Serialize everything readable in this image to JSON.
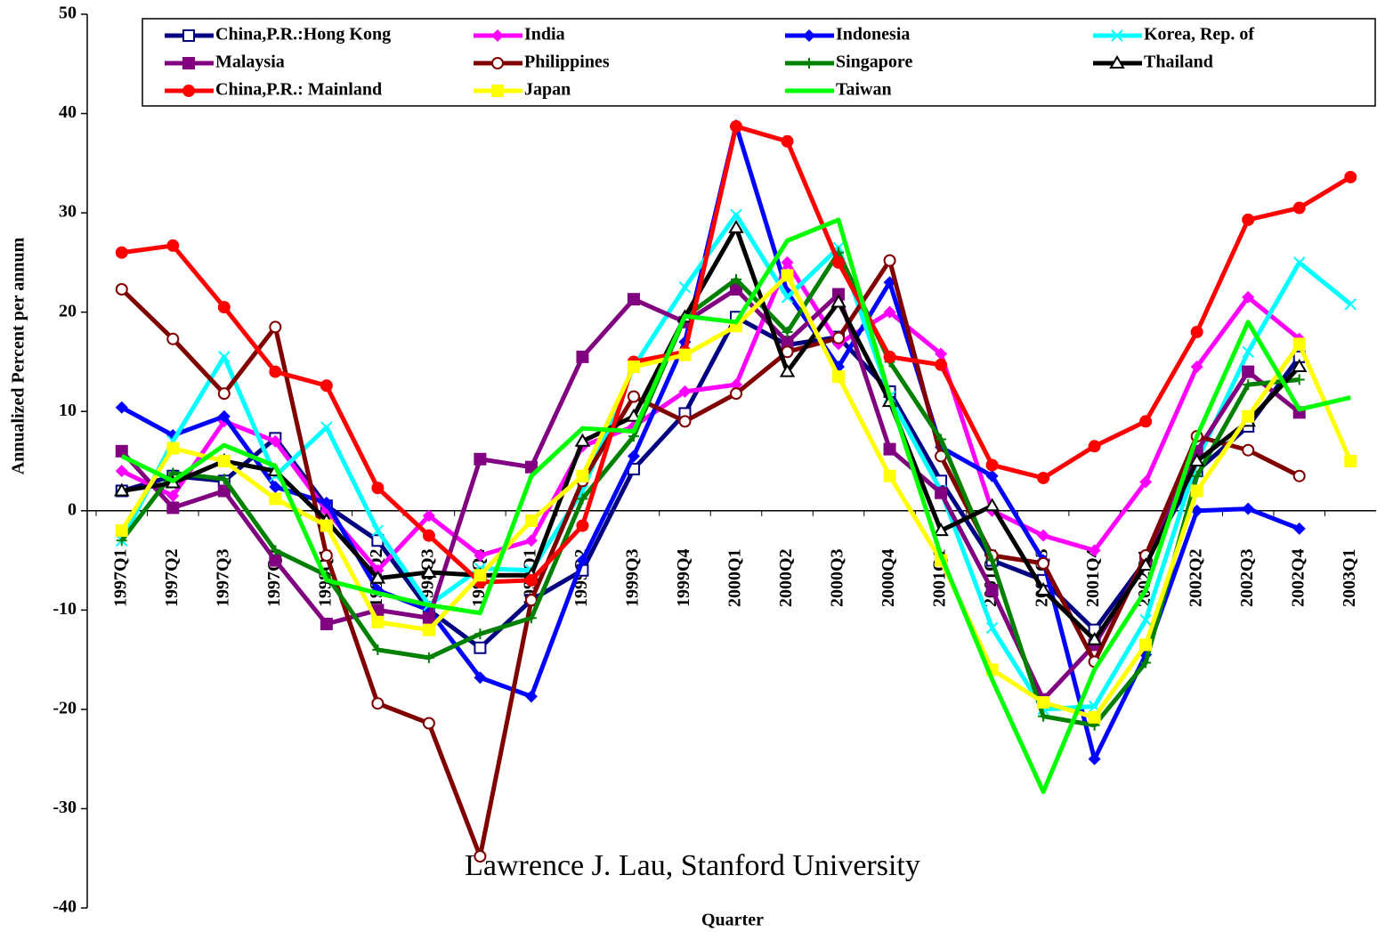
{
  "chart_data": {
    "type": "line",
    "y_label": "Annualized Percent per annum",
    "x_label": "Quarter",
    "annotation": "Lawrence J. Lau, Stanford University",
    "categories": [
      "1997Q1",
      "1997Q2",
      "1997Q3",
      "1997Q4",
      "1998Q1",
      "1998Q2",
      "1998Q3",
      "1998Q4",
      "1999Q1",
      "1999Q2",
      "1999Q3",
      "1999Q4",
      "2000Q1",
      "2000Q2",
      "2000Q3",
      "2000Q4",
      "2001Q1",
      "2001Q2",
      "2001Q3",
      "2001Q4",
      "2002Q1",
      "2002Q2",
      "2002Q3",
      "2002Q4",
      "2003Q1"
    ],
    "ylim": [
      -40,
      50
    ],
    "yticks": [
      -40,
      -30,
      -20,
      -10,
      0,
      10,
      20,
      30,
      40,
      50
    ],
    "grid": false,
    "legend": "top",
    "series": [
      {
        "name": "China,P.R.:Hong Kong",
        "color": "#000080",
        "marker": "square-open",
        "values": [
          2,
          3.5,
          3,
          7.3,
          0.5,
          -3,
          -10,
          -13.8,
          -9,
          -6,
          4.2,
          9.8,
          19.5,
          16.7,
          17.5,
          12,
          3,
          -5,
          -7,
          -12,
          -5,
          4,
          8.5,
          15.5,
          null
        ]
      },
      {
        "name": "India",
        "color": "#ff00ff",
        "marker": "diamond",
        "values": [
          4,
          1.5,
          9,
          7,
          0,
          -6,
          -0.5,
          -4.5,
          -3,
          6.5,
          8.5,
          12,
          12.7,
          25,
          16.8,
          20,
          15.8,
          0,
          -2.5,
          -4,
          2.9,
          14.5,
          21.5,
          17.3,
          null
        ]
      },
      {
        "name": "Indonesia",
        "color": "#0000ff",
        "marker": "diamond",
        "values": [
          10.4,
          7.6,
          9.5,
          2.4,
          0.8,
          -8,
          -10,
          -16.8,
          -18.7,
          -5,
          5.5,
          17,
          38.8,
          22,
          14.5,
          23,
          6.4,
          3.5,
          -5,
          -25,
          -14.5,
          0,
          0.2,
          -1.8,
          null
        ]
      },
      {
        "name": "Korea, Rep. of",
        "color": "#00ffff",
        "marker": "x",
        "values": [
          -3,
          7,
          15.5,
          3.5,
          8.4,
          -2,
          -9.5,
          -5.8,
          -6,
          2,
          14.5,
          22.5,
          29.8,
          21.5,
          26.5,
          11.5,
          2,
          -11.8,
          -20,
          -19.7,
          -11,
          5,
          16,
          25,
          20.8
        ]
      },
      {
        "name": "Malaysia",
        "color": "#800080",
        "marker": "square",
        "values": [
          6,
          0.3,
          2,
          -5,
          -11.4,
          -10,
          -10.8,
          5.2,
          4.4,
          15.5,
          21.3,
          19,
          22.3,
          17,
          21.8,
          6.2,
          1.8,
          -8,
          -19,
          -13.5,
          -5,
          6,
          14,
          9.9,
          null
        ]
      },
      {
        "name": "Philippines",
        "color": "#800000",
        "marker": "circle-open",
        "values": [
          22.3,
          17.3,
          11.8,
          18.5,
          -4.5,
          -19.4,
          -21.4,
          -34.8,
          -9,
          3,
          11.5,
          9,
          11.8,
          16,
          17.4,
          25.2,
          5.5,
          -4.5,
          -5.3,
          -15.2,
          -4.5,
          7.5,
          6.1,
          3.5,
          null
        ]
      },
      {
        "name": "Singapore",
        "color": "#008000",
        "marker": "plus",
        "values": [
          -3,
          3.8,
          3.2,
          -4,
          -6.5,
          -14,
          -14.8,
          -12.4,
          -10.8,
          1.2,
          7.5,
          19.5,
          23.3,
          18,
          26,
          15,
          7.2,
          -5,
          -20.7,
          -21.6,
          -15.3,
          3.5,
          12.7,
          13.2,
          null
        ]
      },
      {
        "name": "Thailand",
        "color": "#000000",
        "marker": "triangle-open",
        "values": [
          2,
          2.8,
          5,
          4,
          -1,
          -6.8,
          -6.2,
          -6.5,
          -6.5,
          7,
          9.5,
          19.5,
          28.5,
          14,
          21,
          11,
          -2,
          0.5,
          -8,
          -13,
          -5.5,
          5,
          9,
          14.5,
          null
        ]
      },
      {
        "name": "China,P.R.: Mainland",
        "color": "#ff0000",
        "marker": "circle",
        "values": [
          26,
          26.7,
          20.5,
          14,
          12.6,
          2.3,
          -2.5,
          -7.2,
          -7,
          -1.5,
          15,
          16,
          38.7,
          37.2,
          25,
          15.5,
          14.7,
          4.6,
          3.3,
          6.5,
          9,
          18,
          29.3,
          30.5,
          33.6
        ]
      },
      {
        "name": "Japan",
        "color": "#ffff00",
        "marker": "square",
        "values": [
          -2,
          6.3,
          5,
          1.2,
          -1.5,
          -11.2,
          -12,
          -6.5,
          -1,
          3.5,
          14.5,
          15.7,
          18.6,
          23.7,
          13.5,
          3.5,
          -5,
          -16,
          -19.3,
          -20.8,
          -13.5,
          2,
          9.5,
          16.8,
          5
        ]
      },
      {
        "name": "Taiwan",
        "color": "#00ff00",
        "marker": "none",
        "values": [
          5.5,
          3,
          6.6,
          4.5,
          -7,
          -8.3,
          -9.5,
          -10.3,
          3.5,
          8.3,
          8,
          19.6,
          19,
          27.2,
          29.3,
          11.5,
          -4.5,
          -17,
          -28.3,
          -16,
          -8,
          7.5,
          19,
          10.2,
          11.4
        ]
      }
    ]
  }
}
